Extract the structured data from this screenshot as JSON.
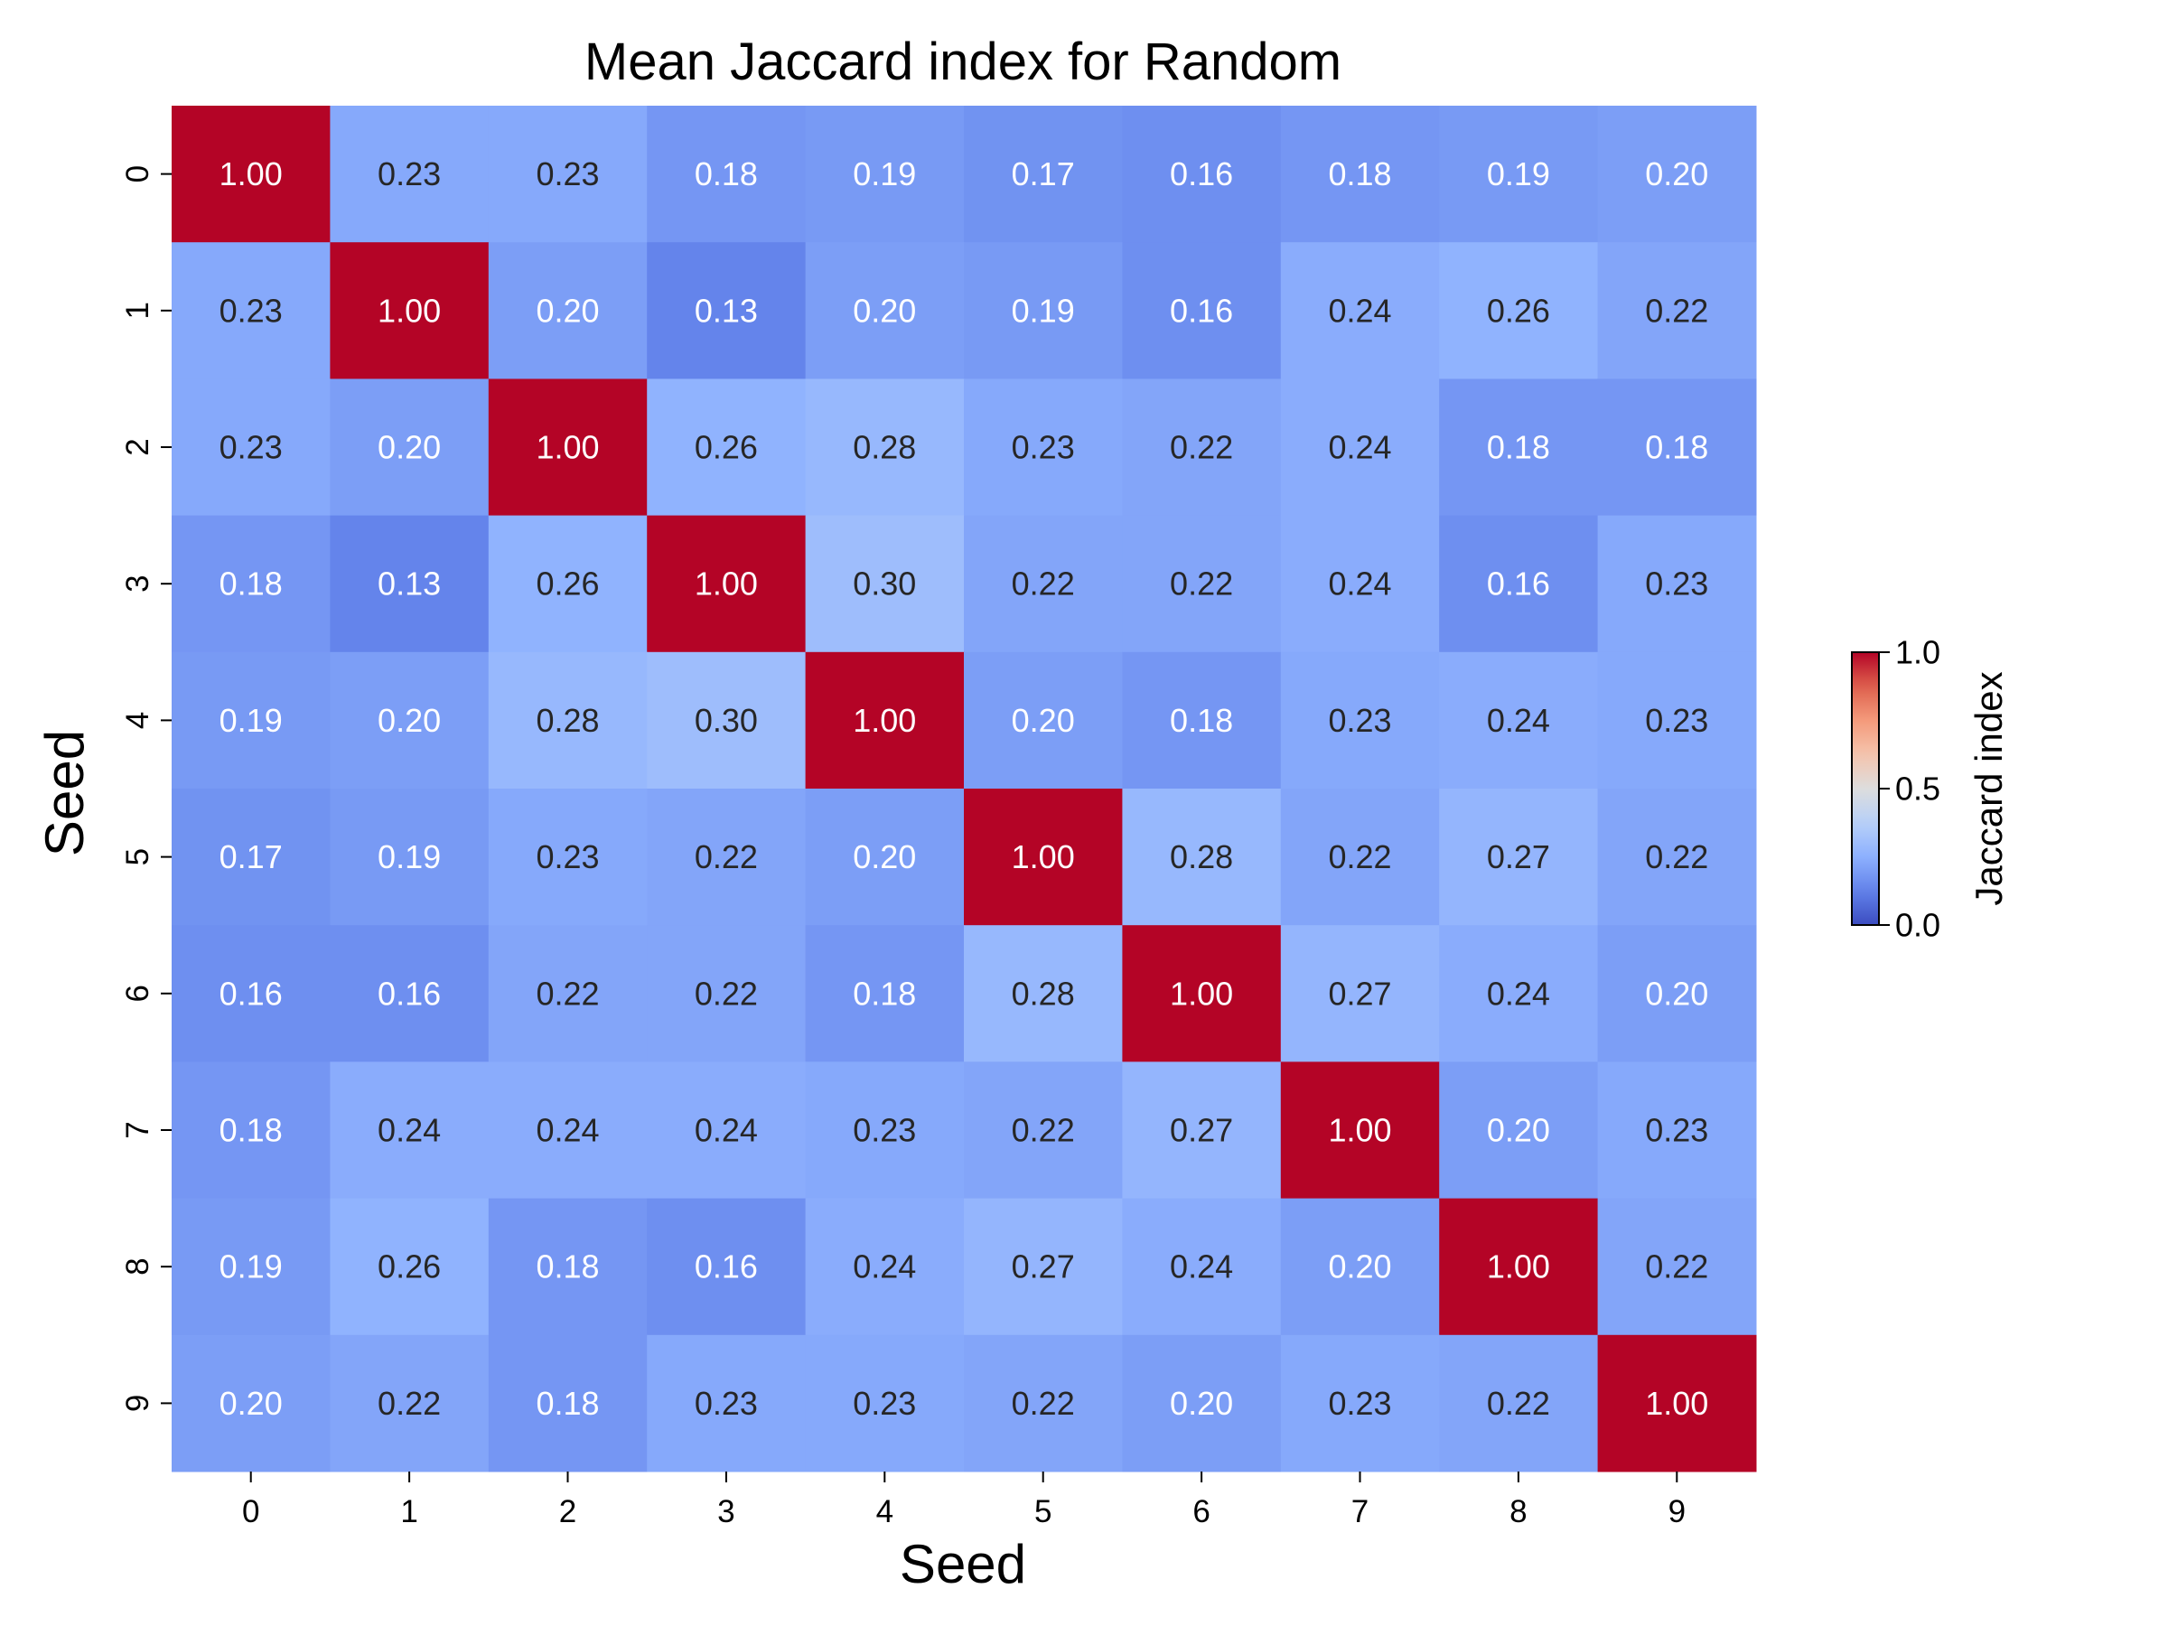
{
  "chart_data": {
    "type": "heatmap",
    "title": "Mean Jaccard index for Random",
    "xlabel": "Seed",
    "ylabel": "Seed",
    "x_categories": [
      "0",
      "1",
      "2",
      "3",
      "4",
      "5",
      "6",
      "7",
      "8",
      "9"
    ],
    "y_categories": [
      "0",
      "1",
      "2",
      "3",
      "4",
      "5",
      "6",
      "7",
      "8",
      "9"
    ],
    "values": [
      [
        1.0,
        0.23,
        0.23,
        0.18,
        0.19,
        0.17,
        0.16,
        0.18,
        0.19,
        0.2
      ],
      [
        0.23,
        1.0,
        0.2,
        0.13,
        0.2,
        0.19,
        0.16,
        0.24,
        0.26,
        0.22
      ],
      [
        0.23,
        0.2,
        1.0,
        0.26,
        0.28,
        0.23,
        0.22,
        0.24,
        0.18,
        0.18
      ],
      [
        0.18,
        0.13,
        0.26,
        1.0,
        0.3,
        0.22,
        0.22,
        0.24,
        0.16,
        0.23
      ],
      [
        0.19,
        0.2,
        0.28,
        0.3,
        1.0,
        0.2,
        0.18,
        0.23,
        0.24,
        0.23
      ],
      [
        0.17,
        0.19,
        0.23,
        0.22,
        0.2,
        1.0,
        0.28,
        0.22,
        0.27,
        0.22
      ],
      [
        0.16,
        0.16,
        0.22,
        0.22,
        0.18,
        0.28,
        1.0,
        0.27,
        0.24,
        0.2
      ],
      [
        0.18,
        0.24,
        0.24,
        0.24,
        0.23,
        0.22,
        0.27,
        1.0,
        0.2,
        0.23
      ],
      [
        0.19,
        0.26,
        0.18,
        0.16,
        0.24,
        0.27,
        0.24,
        0.2,
        1.0,
        0.22
      ],
      [
        0.2,
        0.22,
        0.18,
        0.23,
        0.23,
        0.22,
        0.2,
        0.23,
        0.22,
        1.0
      ]
    ],
    "value_format": "2 decimals",
    "colormap": "coolwarm",
    "vmin": 0.0,
    "vmax": 1.0,
    "colorbar": {
      "label": "Jaccard index",
      "ticks": [
        "0.0",
        "0.5",
        "1.0"
      ],
      "tick_values": [
        0.0,
        0.5,
        1.0
      ]
    },
    "grid": false,
    "colorbar_placement": "right"
  }
}
